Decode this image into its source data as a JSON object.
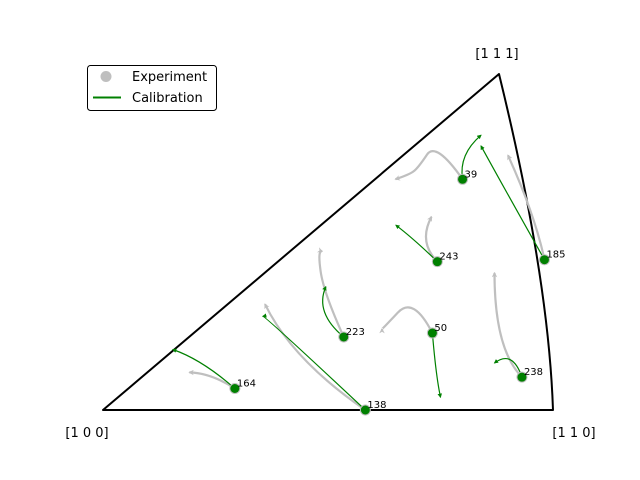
{
  "chart_data": {
    "type": "scatter",
    "title": "",
    "corners": {
      "left": "[1 0 0]",
      "right": "[1 1 0]",
      "top": "[1 1 1]"
    },
    "legend": {
      "placement": "top-left",
      "entries": [
        {
          "label": "Experiment",
          "marker": "circle",
          "color": "#bfbfbf"
        },
        {
          "label": "Calibration",
          "marker": "line",
          "color": "#008000"
        }
      ]
    },
    "colors": {
      "experiment": "#bfbfbf",
      "calibration": "#008000",
      "frame": "#000000"
    },
    "grains": [
      {
        "id": "39",
        "start": [
          0.799,
          0.6866
        ],
        "experiment_path": [
          [
            0.799,
            0.6866
          ],
          [
            0.74,
            0.8
          ],
          [
            0.7,
            0.72
          ],
          [
            0.68,
            0.7
          ],
          [
            0.65,
            0.687
          ]
        ],
        "calibration_path": [
          [
            0.799,
            0.6866
          ],
          [
            0.79,
            0.76
          ],
          [
            0.84,
            0.818
          ]
        ]
      },
      {
        "id": "185",
        "start": [
          0.981,
          0.4473
        ],
        "experiment_path": [
          [
            0.981,
            0.4473
          ],
          [
            0.96,
            0.58
          ],
          [
            0.9,
            0.758
          ]
        ],
        "calibration_path": [
          [
            0.981,
            0.4473
          ],
          [
            0.9,
            0.64
          ],
          [
            0.84,
            0.786
          ]
        ]
      },
      {
        "id": "243",
        "start": [
          0.743,
          0.4415
        ],
        "experiment_path": [
          [
            0.743,
            0.4415
          ],
          [
            0.7,
            0.5
          ],
          [
            0.73,
            0.575
          ]
        ],
        "calibration_path": [
          [
            0.743,
            0.4415
          ],
          [
            0.69,
            0.51
          ],
          [
            0.651,
            0.55
          ]
        ]
      },
      {
        "id": "50",
        "start": [
          0.732,
          0.229
        ],
        "experiment_path": [
          [
            0.732,
            0.229
          ],
          [
            0.69,
            0.34
          ],
          [
            0.62,
            0.24
          ],
          [
            0.62,
            0.241
          ]
        ],
        "calibration_path": [
          [
            0.732,
            0.229
          ],
          [
            0.74,
            0.1
          ],
          [
            0.75,
            0.038
          ]
        ]
      },
      {
        "id": "238",
        "start": [
          0.931,
          0.0977
        ],
        "experiment_path": [
          [
            0.931,
            0.0977
          ],
          [
            0.87,
            0.18
          ],
          [
            0.87,
            0.408
          ]
        ],
        "calibration_path": [
          [
            0.931,
            0.0977
          ],
          [
            0.91,
            0.18
          ],
          [
            0.87,
            0.14
          ]
        ]
      },
      {
        "id": "223",
        "start": [
          0.535,
          0.2173
        ],
        "experiment_path": [
          [
            0.535,
            0.2173
          ],
          [
            0.49,
            0.35
          ],
          [
            0.477,
            0.477
          ],
          [
            0.487,
            0.472
          ]
        ],
        "calibration_path": [
          [
            0.535,
            0.2173
          ],
          [
            0.47,
            0.29
          ],
          [
            0.495,
            0.367
          ]
        ]
      },
      {
        "id": "138",
        "start": [
          0.583,
          0.0
        ],
        "experiment_path": [
          [
            0.583,
            0.0
          ],
          [
            0.42,
            0.15
          ],
          [
            0.36,
            0.315
          ]
        ],
        "calibration_path": [
          [
            0.583,
            0.0
          ],
          [
            0.36,
            0.28
          ],
          [
            0.355,
            0.279
          ]
        ]
      },
      {
        "id": "164",
        "start": [
          0.293,
          0.064
        ],
        "experiment_path": [
          [
            0.293,
            0.064
          ],
          [
            0.24,
            0.11
          ],
          [
            0.192,
            0.112
          ]
        ],
        "calibration_path": [
          [
            0.293,
            0.064
          ],
          [
            0.22,
            0.15
          ],
          [
            0.155,
            0.18
          ]
        ]
      }
    ]
  }
}
